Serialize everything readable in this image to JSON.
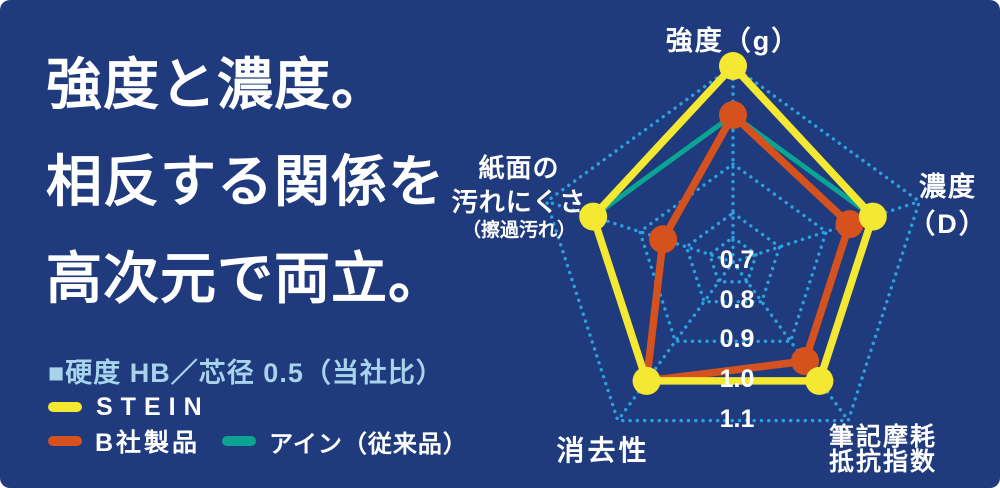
{
  "headline": {
    "lines": [
      "強度と濃度。",
      "相反する関係を",
      "高次元で両立。"
    ]
  },
  "caption": "■硬度 HB／芯径 0.5（当社比）",
  "legend": {
    "items": [
      {
        "label": "STEIN"
      },
      {
        "label": "B社製品"
      },
      {
        "label": "アイン（従来品）"
      }
    ]
  },
  "colors": {
    "background": "#1f3a7d",
    "grid": "#2ba2dd",
    "caption_blue": "#a8d3ec",
    "text": "#ffffff"
  },
  "chart_data": {
    "type": "radar",
    "title": "",
    "axes": [
      {
        "name": "強度（g）",
        "lines": [
          "強度（g）"
        ]
      },
      {
        "name": "濃度（D）",
        "lines": [
          "濃度",
          "（D）"
        ]
      },
      {
        "name": "筆記摩耗抵抗指数",
        "lines": [
          "筆記摩耗",
          "抵抗指数"
        ]
      },
      {
        "name": "消去性",
        "lines": [
          "消去性"
        ]
      },
      {
        "name": "紙面の汚れにくさ（擦過汚れ）",
        "lines": [
          "紙面の",
          "汚れにくさ",
          "（擦過汚れ）"
        ]
      }
    ],
    "center_value": 0.7,
    "max_value": 1.1,
    "ticks": [
      0.7,
      0.8,
      0.9,
      1.0,
      1.1
    ],
    "tick_labels": [
      "0.7",
      "0.8",
      "0.9",
      "1.0",
      "1.1"
    ],
    "grid_rings": [
      0.75,
      0.8,
      0.9,
      1.0,
      1.1
    ],
    "grid_on": true,
    "legend_position": "bottom-left",
    "series": [
      {
        "name": "STEIN",
        "color": "#f4e833",
        "values": [
          1.1,
          1.0,
          1.0,
          1.0,
          1.0
        ],
        "line_width": 7.5,
        "dot_radius": 14,
        "show_dots": true
      },
      {
        "name": "B社製品",
        "color": "#d5521f",
        "values": [
          1.0,
          0.95,
          0.95,
          1.0,
          0.85
        ],
        "line_width": 7.5,
        "dot_radius": 14,
        "show_dots": true
      },
      {
        "name": "アイン（従来品）",
        "color": "#0ba392",
        "values": [
          1.0,
          1.0,
          1.0,
          1.0,
          1.0
        ],
        "line_width": 5,
        "dot_radius": 0,
        "show_dots": false
      }
    ]
  }
}
